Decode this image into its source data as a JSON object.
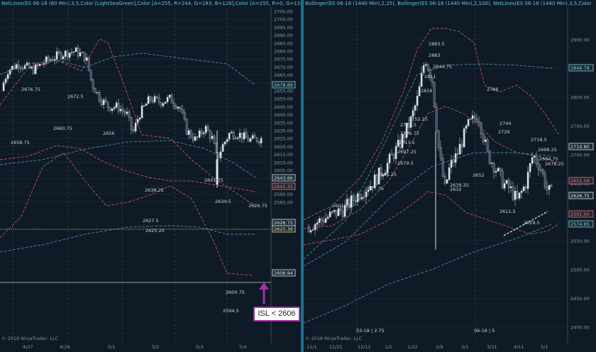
{
  "left": {
    "header": "NetLines(ES 06-18 (60 Min),3,5,Color [LightSeaGreen],Color [A=255, R=244, G=183, B=126],Color [A=255, R=0, G=131,",
    "copyright": "© 2018 NinjaTrader, LLC",
    "price_ticks": [
      "2705.00",
      "2700.00",
      "2695.00",
      "2690.00",
      "2685.00",
      "2680.00",
      "2675.00",
      "2670.00",
      "2665.00",
      "2660.00",
      "2655.00",
      "2650.00",
      "2645.00",
      "2640.00",
      "2635.00",
      "2630.00",
      "2625.00",
      "2620.00",
      "2615.00",
      "2610.00",
      "2605.00",
      "2600.00",
      "2595.00",
      "2590.00",
      "2585.00"
    ],
    "date_ticks": [
      "4/27",
      "4/29",
      "5/1",
      "5/2",
      "5/3",
      "5/4"
    ],
    "price_flags": [
      "2678.89",
      "2643.66",
      "2641.32",
      "2626.75",
      "2625.36",
      "2608.94"
    ],
    "chart_labels": [
      "2676.75",
      "2672.5",
      "2660.75",
      "2658.75",
      "2656",
      "2641.75",
      "2638.25",
      "2627.5",
      "2625.25",
      "2634.5",
      "2626.75",
      "2600.75",
      "2594.5"
    ],
    "annotation": "ISL < 2606"
  },
  "right": {
    "header": "Bollinger(ES 06-18 (1440 Min),2,25), Bollinger(ES 06-18 (1440 Min),2,100), NetLines(ES 06-18 (1440 Min),3,5,Color",
    "copyright": "© 2018 NinjaTrader, LLC",
    "price_ticks": [
      "2900.00",
      "2850.00",
      "2800.00",
      "2750.00",
      "2700.00",
      "2650.00",
      "2600.00",
      "2550.00",
      "2500.00",
      "2450.00",
      "2400.00"
    ],
    "date_ticks": [
      "11/1",
      "11/21",
      "12/11",
      "1/2",
      "1/22",
      "2/9",
      "3/1",
      "3/21",
      "4/11",
      "5/1"
    ],
    "price_flags": [
      "2846.78",
      "2710.80",
      "2651.58",
      "2626.75",
      "2591.50",
      "2574.85"
    ],
    "chart_labels": [
      "2883.5",
      "2883",
      "2844.75",
      "2811",
      "2816",
      "2752.25",
      "2741.5",
      "2726.75",
      "2713.5",
      "2697.25",
      "2679.5",
      "2645.25",
      "2627.75",
      "2601.25",
      "2786",
      "2744",
      "2729",
      "2718.5",
      "2698.25",
      "2684.75",
      "2676.25",
      "2652",
      "2639.25",
      "2632",
      "2611.5",
      "2529.5"
    ],
    "bottom_notes": [
      "03-18 | 2.75",
      "06-18 | 5"
    ]
  }
}
